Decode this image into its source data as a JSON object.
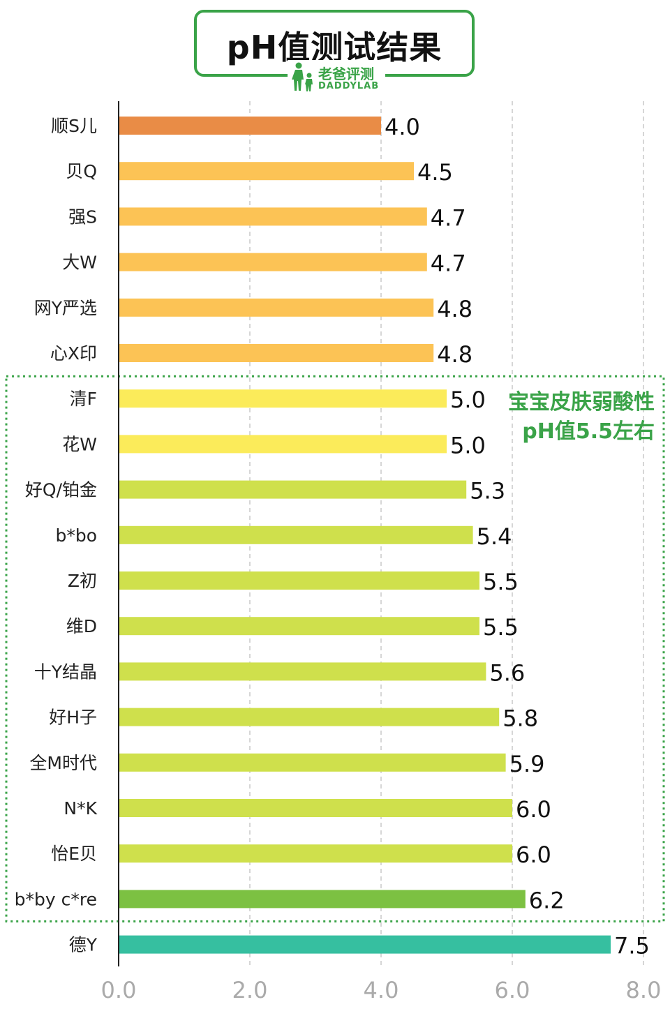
{
  "title": "pH值测试结果",
  "brand": {
    "name_cn": "老爸评测",
    "name_en": "DADDYLAB"
  },
  "annotation": {
    "line1": "宝宝皮肤弱酸性",
    "line2": "pH值5.5左右"
  },
  "chart_data": {
    "type": "bar",
    "orientation": "horizontal",
    "title": "pH值测试结果",
    "categories": [
      "顺S儿",
      "贝Q",
      "强S",
      "大W",
      "网Y严选",
      "心X印",
      "清F",
      "花W",
      "好Q/铂金",
      "b*bo",
      "Z初",
      "维D",
      "十Y结晶",
      "好H子",
      "全M时代",
      "N*K",
      "怡E贝",
      "b*by c*re",
      "德Y"
    ],
    "values": [
      4.0,
      4.5,
      4.7,
      4.7,
      4.8,
      4.8,
      5.0,
      5.0,
      5.3,
      5.4,
      5.5,
      5.5,
      5.6,
      5.8,
      5.9,
      6.0,
      6.0,
      6.2,
      7.5
    ],
    "value_labels": [
      "4.0",
      "4.5",
      "4.7",
      "4.7",
      "4.8",
      "4.8",
      "5.0",
      "5.0",
      "5.3",
      "5.4",
      "5.5",
      "5.5",
      "5.6",
      "5.8",
      "5.9",
      "6.0",
      "6.0",
      "6.2",
      "7.5"
    ],
    "colors": [
      "#e98c46",
      "#fcc355",
      "#fcc355",
      "#fcc355",
      "#fcc355",
      "#fcc355",
      "#fbeb5a",
      "#fbeb5a",
      "#cfe04c",
      "#cfe04c",
      "#cfe04c",
      "#cfe04c",
      "#cfe04c",
      "#cfe04c",
      "#cfe04c",
      "#cfe04c",
      "#cfe04c",
      "#7cc142",
      "#36bfa0"
    ],
    "xlim": [
      0,
      8
    ],
    "xticks": [
      0,
      2,
      4,
      6,
      8
    ],
    "xtick_labels": [
      "0.0",
      "2.0",
      "4.0",
      "6.0",
      "8.0"
    ],
    "grid": "vertical dashed",
    "highlight_range": {
      "from_category": "清F",
      "to_category": "b*by c*re",
      "style": "dotted green box"
    }
  }
}
